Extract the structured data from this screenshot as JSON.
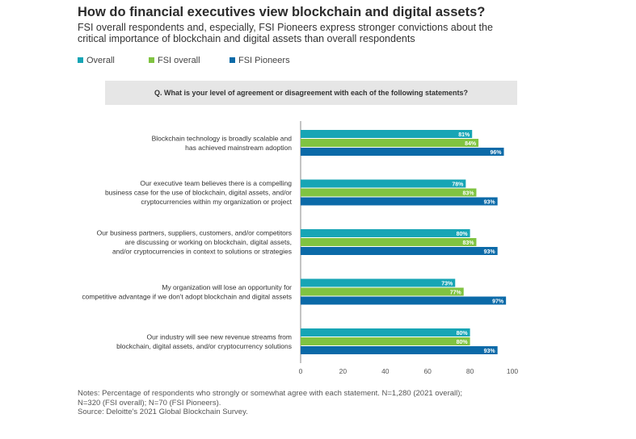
{
  "header": {
    "title": "How do financial executives view blockchain and digital assets?",
    "subtitle": "FSI overall respondents and, especially, FSI Pioneers express stronger convictions about the critical importance of blockchain and digital assets than overall respondents"
  },
  "question": "Q.  What is your level of agreement or disagreement with each of the following statements?",
  "notes": {
    "line1": "Notes: Percentage of respondents who strongly or somewhat agree with each statement. N=1,280 (2021 overall);",
    "line2": "N=320 (FSI overall); N=70 (FSI Pioneers).",
    "line3": "Source: Deloitte's 2021 Global Blockchain Survey."
  },
  "colors": {
    "Overall": "#17a5b5",
    "FSI overall": "#80c341",
    "FSI Pioneers": "#0b6aa8",
    "axis": "#888888",
    "label_text": "#333333"
  },
  "chart_data": {
    "type": "bar",
    "orientation": "horizontal",
    "categories": [
      [
        "Blockchain technology is broadly scalable and",
        "has achieved mainstream adoption"
      ],
      [
        "Our executive team believes there is a compelling",
        "business case for the use of blockchain, digital assets, and/or",
        "cryptocurrencies within my organization or project"
      ],
      [
        "Our business partners, suppliers, customers, and/or competitors",
        "are discussing or working on blockchain, digital assets,",
        "and/or cryptocurrencies in context to solutions or strategies"
      ],
      [
        "My organization will lose an opportunity for",
        "competitive advantage if we don't adopt blockchain and digital assets"
      ],
      [
        "Our industry will see new revenue streams from",
        "blockchain, digital assets, and/or cryptocurrency solutions"
      ]
    ],
    "series": [
      {
        "name": "Overall",
        "values": [
          81,
          78,
          80,
          73,
          80
        ]
      },
      {
        "name": "FSI overall",
        "values": [
          84,
          83,
          83,
          77,
          80
        ]
      },
      {
        "name": "FSI Pioneers",
        "values": [
          96,
          93,
          93,
          97,
          93
        ]
      }
    ],
    "value_suffix": "%",
    "xlim": [
      0,
      100
    ],
    "xticks": [
      0,
      20,
      40,
      60,
      80,
      100
    ],
    "grid": false,
    "legend_position": "top-left"
  }
}
